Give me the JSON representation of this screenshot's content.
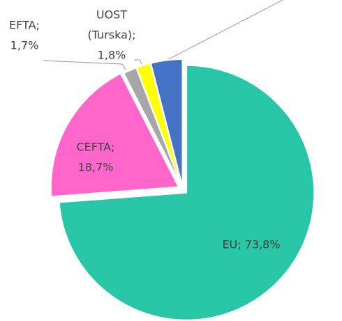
{
  "chart_data": {
    "type": "pie",
    "values": [
      73.8,
      18.7,
      1.7,
      1.8,
      4.0
    ],
    "value_labels": [
      [
        "EU; 73,8%"
      ],
      [
        "CEFTA;",
        "18,7%"
      ],
      [
        "EFTA;",
        "1,7%"
      ],
      [
        "UOST",
        "(Turska);",
        "1,8%"
      ],
      null
    ],
    "colors": [
      "#26c6a6",
      "#ff66cc",
      "#a6a6a6",
      "#ffff00",
      "#4472c4"
    ]
  }
}
